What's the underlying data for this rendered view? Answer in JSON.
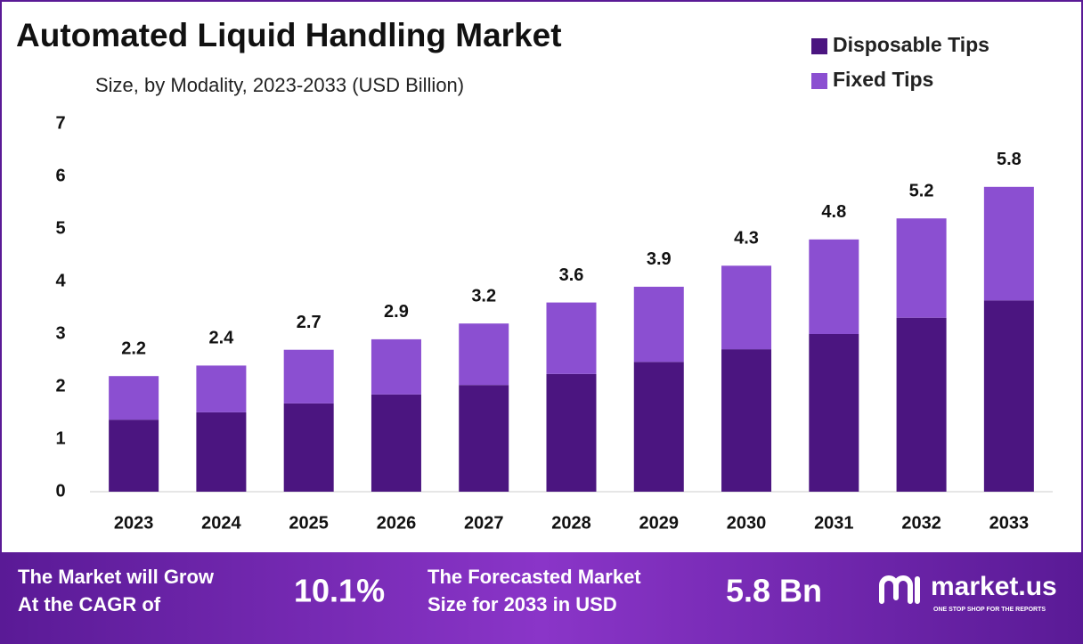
{
  "chart_data": {
    "type": "stacked-bar",
    "title": "Automated Liquid Handling Market",
    "subtitle": "Size, by Modality, 2023-2033 (USD Billion)",
    "categories": [
      "2023",
      "2024",
      "2025",
      "2026",
      "2027",
      "2028",
      "2029",
      "2030",
      "2031",
      "2032",
      "2033"
    ],
    "series": [
      {
        "name": "Disposable Tips",
        "color": "#4b1580",
        "values": [
          1.37,
          1.51,
          1.68,
          1.85,
          2.03,
          2.24,
          2.47,
          2.71,
          3.0,
          3.31,
          3.64
        ]
      },
      {
        "name": "Fixed Tips",
        "color": "#8b4fd1",
        "values": [
          0.83,
          0.89,
          1.02,
          1.05,
          1.17,
          1.36,
          1.43,
          1.59,
          1.8,
          1.89,
          2.16
        ]
      }
    ],
    "totals": [
      2.2,
      2.4,
      2.7,
      2.9,
      3.2,
      3.6,
      3.9,
      4.3,
      4.8,
      5.2,
      5.8
    ],
    "ylim": [
      0,
      7
    ],
    "yticks": [
      0,
      1,
      2,
      3,
      4,
      5,
      6,
      7
    ],
    "grid": false,
    "legend": "top-right"
  },
  "footer": {
    "cagr_label": [
      "The Market will Grow",
      "At the CAGR of"
    ],
    "cagr": "10.1%",
    "forecast_label": [
      "The Forecasted Market",
      "Size for 2033 in USD"
    ],
    "forecast": "5.8 Bn",
    "brand": "market.us",
    "tagline": "ONE STOP SHOP FOR THE REPORTS"
  }
}
